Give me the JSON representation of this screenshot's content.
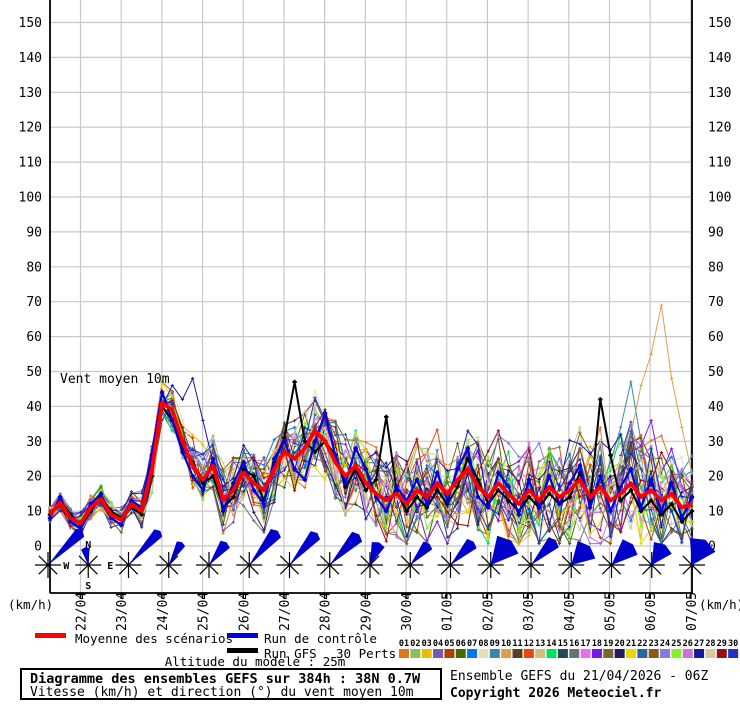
{
  "chart": {
    "inplot_label": "Vent moyen 10m",
    "y_unit_label": "(km/h)",
    "ymax": 150,
    "ystep": 10
  },
  "legend": {
    "mean": "Moyenne des scénarios",
    "control": "Run de contrôle",
    "gfs": "Run GFS",
    "perts": "30 Perts.",
    "pert_labels": [
      "01",
      "02",
      "03",
      "04",
      "05",
      "06",
      "07",
      "08",
      "09",
      "10",
      "11",
      "12",
      "13",
      "14",
      "15",
      "16",
      "17",
      "18",
      "19",
      "20",
      "21",
      "22",
      "23",
      "24",
      "25",
      "26",
      "27",
      "28",
      "29",
      "30"
    ]
  },
  "footer": {
    "altitude": "Altitude du modele : 25m",
    "box_title": "Diagramme des ensembles GEFS sur 384h : 38N 0.7W",
    "box_subtitle": "Vitesse (km/h) et direction (°) du vent moyen 10m",
    "run_info": "Ensemble GEFS du 21/04/2026 - 06Z",
    "copyright": "Copyright 2026 Meteociel.fr"
  },
  "chart_data": {
    "type": "line",
    "title": "Vent moyen 10m",
    "ylabel": "(km/h)",
    "ylim": [
      0,
      157
    ],
    "grid": true,
    "step_hours": 6,
    "dates": [
      "22/04",
      "23/04",
      "24/04",
      "25/04",
      "26/04",
      "27/04",
      "28/04",
      "29/04",
      "30/04",
      "01/05",
      "02/05",
      "03/05",
      "04/05",
      "05/05",
      "06/05",
      "07/05"
    ],
    "series": [
      {
        "name": "Moyenne des scénarios",
        "color": "#ff0000",
        "width": 3.8,
        "values": [
          9,
          12.5,
          8,
          6.5,
          11,
          13.5,
          9,
          7.5,
          12,
          10,
          22,
          41,
          39,
          30,
          23,
          19,
          23,
          13,
          16,
          21,
          18,
          16,
          22,
          27,
          25,
          28,
          33,
          30,
          24,
          20,
          23,
          18,
          15,
          13,
          15,
          12,
          16,
          14,
          18,
          15,
          19,
          22,
          17,
          14,
          18,
          15,
          12,
          16,
          13,
          17,
          14,
          16,
          19,
          14,
          17,
          13,
          15,
          18,
          14,
          16,
          13,
          15,
          11,
          12
        ]
      },
      {
        "name": "Run de contrôle",
        "color": "#0000e0",
        "width": 2.2,
        "values": [
          8,
          14,
          7,
          5,
          12,
          15,
          8,
          6,
          13,
          11,
          26,
          44,
          36,
          27,
          20,
          16,
          25,
          10,
          18,
          24,
          16,
          12,
          25,
          30,
          22,
          19,
          30,
          38,
          26,
          18,
          28,
          22,
          14,
          10,
          17,
          13,
          19,
          12,
          21,
          13,
          22,
          28,
          14,
          11,
          21,
          17,
          9,
          19,
          11,
          20,
          12,
          18,
          23,
          11,
          20,
          10,
          17,
          22,
          11,
          19,
          10,
          18,
          8,
          14
        ]
      },
      {
        "name": "Run GFS",
        "color": "#000000",
        "width": 2,
        "values": [
          9,
          13,
          9,
          6,
          10,
          14,
          10,
          8,
          11,
          9,
          20,
          40,
          36,
          28,
          24,
          18,
          20,
          11,
          14,
          22,
          20,
          13,
          24,
          31,
          47,
          30,
          27,
          30,
          26,
          17,
          22,
          16,
          19,
          37,
          16,
          10,
          14,
          11,
          16,
          12,
          17,
          25,
          19,
          12,
          16,
          13,
          10,
          14,
          11,
          15,
          12,
          14,
          21,
          12,
          42,
          26,
          13,
          16,
          10,
          13,
          9,
          12,
          7,
          10
        ]
      }
    ],
    "members": {
      "count": 30,
      "colors": [
        "#e07820",
        "#88c060",
        "#e8c000",
        "#7858a8",
        "#b04000",
        "#486800",
        "#0078f0",
        "#e8dcb0",
        "#3888a8",
        "#d8a050",
        "#584020",
        "#e84810",
        "#d0c080",
        "#00e060",
        "#284858",
        "#687078",
        "#e870e8",
        "#7818e8",
        "#786830",
        "#281868",
        "#e8d800",
        "#2868a0",
        "#905818",
        "#8878e0",
        "#88f028",
        "#d070d0",
        "#1818a0",
        "#d8c8a0",
        "#981010",
        "#2030c0"
      ],
      "spread": [
        3.5,
        3.5,
        3.5,
        3.5,
        3.5,
        3.5,
        3.5,
        3.5,
        3.5,
        5,
        7,
        6,
        6,
        6,
        8,
        8,
        8,
        10,
        10,
        10,
        10,
        10,
        10,
        11,
        11,
        11,
        11,
        11,
        11,
        12,
        12,
        12,
        12,
        12,
        13,
        13,
        13,
        13,
        13,
        13,
        13,
        14,
        14,
        14,
        14,
        14,
        14,
        14,
        15,
        15,
        15,
        15,
        15,
        15,
        15,
        15,
        17,
        17,
        17,
        17,
        17,
        13,
        13,
        13
      ],
      "overrides": [
        {
          "member": 26,
          "start": 11,
          "values": [
            40,
            46,
            42,
            48,
            36,
            24
          ]
        },
        {
          "member": 8,
          "start": 54,
          "values": [
            16,
            24,
            34,
            47,
            30,
            16,
            10
          ]
        },
        {
          "member": 9,
          "start": 55,
          "values": [
            18,
            25,
            32,
            46,
            55,
            69,
            48,
            34
          ]
        }
      ]
    },
    "wind_barbs": {
      "color": "#0000cc",
      "arrows": [
        {
          "angle": 45,
          "spread": 14,
          "len": 46
        },
        {
          "angle": 350,
          "spread": 30,
          "len": 17
        },
        {
          "angle": 43,
          "spread": 14,
          "len": 44
        },
        {
          "angle": 30,
          "spread": 22,
          "len": 25
        },
        {
          "angle": 38,
          "spread": 25,
          "len": 27
        },
        {
          "angle": 40,
          "spread": 18,
          "len": 42
        },
        {
          "angle": 41,
          "spread": 18,
          "len": 40
        },
        {
          "angle": 44,
          "spread": 20,
          "len": 40
        },
        {
          "angle": 22,
          "spread": 35,
          "len": 23
        },
        {
          "angle": 42,
          "spread": 25,
          "len": 27
        },
        {
          "angle": 45,
          "spread": 25,
          "len": 31
        },
        {
          "angle": 40,
          "spread": 55,
          "len": 30
        },
        {
          "angle": 45,
          "spread": 25,
          "len": 33
        },
        {
          "angle": 45,
          "spread": 60,
          "len": 25
        },
        {
          "angle": 46,
          "spread": 45,
          "len": 28
        },
        {
          "angle": 33,
          "spread": 55,
          "len": 23
        },
        {
          "angle": 28,
          "spread": 65,
          "len": 27
        }
      ],
      "compass": {
        "n": "N",
        "s": "S",
        "e": "E",
        "w": "W"
      }
    }
  }
}
